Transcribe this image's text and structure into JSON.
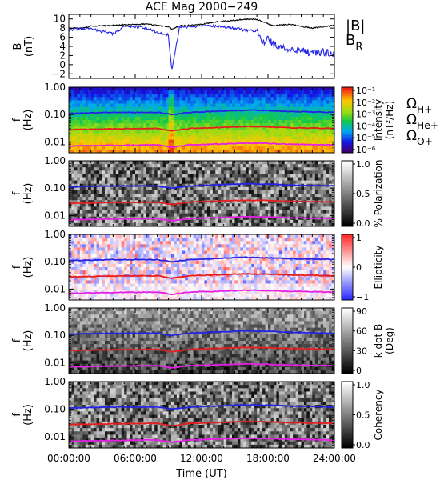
{
  "title": "ACE Mag 2000−249",
  "x_axis": {
    "label": "Time (UT)",
    "range_hours": [
      0,
      24
    ],
    "ticks": [
      {
        "h": 0,
        "label": "00:00:00"
      },
      {
        "h": 6,
        "label": "06:00:00"
      },
      {
        "h": 12,
        "label": "12:00:00"
      },
      {
        "h": 18,
        "label": "18:00:00"
      },
      {
        "h": 24,
        "label": "24:00:00"
      }
    ]
  },
  "panels": [
    {
      "id": "b",
      "ylabel": "B",
      "ylabel2": "(nT)",
      "ylim": [
        -3,
        11
      ],
      "yticks": [
        "10",
        "8",
        "6",
        "4",
        "2",
        "0",
        "−2"
      ],
      "ytick_values": [
        10,
        8,
        6,
        4,
        2,
        0,
        -2
      ],
      "legend": [
        {
          "text": "|B|",
          "color": "#000000"
        },
        {
          "text": "B",
          "sub": "R",
          "color": "#2323e6"
        }
      ]
    },
    {
      "id": "intensity",
      "ylabel": "f",
      "ylabel2": "(Hz)",
      "yticks": [
        "1.00",
        "0.10",
        "0.01"
      ],
      "colorbar_label": "Intensity",
      "colorbar_label2": "(nT²/Hz)",
      "colorbar_ticks": [
        "10⁻¹",
        "10⁻²",
        "10⁻³",
        "10⁻⁴",
        "10⁻⁵",
        "10⁻⁶"
      ],
      "legend": [
        {
          "text": "Ω",
          "sub": "H+",
          "color": "#2323e6"
        },
        {
          "text": "Ω",
          "sub": "He+",
          "color": "#e61e1e"
        },
        {
          "text": "Ω",
          "sub": "O+",
          "color": "#e61ee6"
        }
      ]
    },
    {
      "id": "polarization",
      "ylabel": "f",
      "ylabel2": "(Hz)",
      "yticks": [
        "1.00",
        "0.10",
        "0.01"
      ],
      "colorbar_label": "% Polarization",
      "colorbar_ticks": [
        "1.0",
        "0.5",
        "0.0"
      ]
    },
    {
      "id": "ellipticity",
      "ylabel": "f",
      "ylabel2": "(Hz)",
      "yticks": [
        "1.00",
        "0.10",
        "0.01"
      ],
      "colorbar_label": "Ellipticity",
      "colorbar_ticks": [
        "1",
        "0",
        "−1"
      ]
    },
    {
      "id": "kdotb",
      "ylabel": "f",
      "ylabel2": "(Hz)",
      "yticks": [
        "1.00",
        "0.10",
        "0.01"
      ],
      "colorbar_label": "k dot B",
      "colorbar_label2": "(Deg)",
      "colorbar_ticks": [
        "90",
        "60",
        "30",
        "0"
      ]
    },
    {
      "id": "coherency",
      "ylabel": "f",
      "ylabel2": "(Hz)",
      "yticks": [
        "1.00",
        "0.10",
        "0.01"
      ],
      "colorbar_label": "Coherency",
      "colorbar_ticks": [
        "1.0",
        "0.5",
        "0.0"
      ]
    }
  ],
  "chart_data": [
    {
      "type": "line",
      "panel": "b",
      "title": "ACE Mag 2000−249",
      "xlabel": "Time (UT)",
      "ylabel": "B (nT)",
      "xlim": [
        0,
        24
      ],
      "ylim": [
        -3,
        11
      ],
      "series": [
        {
          "name": "|B|",
          "color": "#000000",
          "x": [
            0,
            1,
            2,
            3,
            4,
            5,
            6,
            7,
            8,
            9,
            9.3,
            10,
            11,
            12,
            13,
            14,
            15,
            16,
            17,
            17.5,
            18,
            18.5,
            19,
            20,
            21,
            22,
            23,
            24
          ],
          "y": [
            8.0,
            8.0,
            8.4,
            8.5,
            8.6,
            8.7,
            8.8,
            8.9,
            8.6,
            8.3,
            7.8,
            8.5,
            8.6,
            8.8,
            9.3,
            9.5,
            9.7,
            10.0,
            9.9,
            9.4,
            9.0,
            8.5,
            8.7,
            8.8,
            8.4,
            8.0,
            8.3,
            8.6
          ]
        },
        {
          "name": "B_R",
          "color": "#2323e6",
          "x": [
            0,
            1,
            2,
            3,
            4,
            5,
            6,
            7,
            8,
            9,
            9.3,
            10,
            11,
            12,
            13,
            14,
            15,
            16,
            17,
            17.5,
            18,
            18.5,
            19,
            20,
            21,
            22,
            23,
            24
          ],
          "y": [
            7.6,
            7.8,
            8.0,
            7.2,
            6.8,
            8.2,
            8.3,
            8.0,
            7.0,
            6.5,
            -1.5,
            8.2,
            8.3,
            8.5,
            8.4,
            8.4,
            8.0,
            7.5,
            7.5,
            5.0,
            5.5,
            4.5,
            4.2,
            3.5,
            3.0,
            2.5,
            2.8,
            2.2
          ]
        }
      ]
    },
    {
      "type": "heatmap",
      "panel": "intensity",
      "xlabel": "Time (UT)",
      "ylabel": "f (Hz)",
      "yscale": "log",
      "xlim": [
        0,
        24
      ],
      "ylim": [
        0.004,
        1.0
      ],
      "colorbar": "Intensity (nT²/Hz)",
      "clim": [
        1e-06,
        0.1
      ]
    },
    {
      "type": "heatmap",
      "panel": "polarization",
      "xlabel": "Time (UT)",
      "ylabel": "f (Hz)",
      "yscale": "log",
      "xlim": [
        0,
        24
      ],
      "ylim": [
        0.004,
        1.0
      ],
      "colorbar": "% Polarization",
      "clim": [
        0.0,
        1.0
      ]
    },
    {
      "type": "heatmap",
      "panel": "ellipticity",
      "xlabel": "Time (UT)",
      "ylabel": "f (Hz)",
      "yscale": "log",
      "xlim": [
        0,
        24
      ],
      "ylim": [
        0.004,
        1.0
      ],
      "colorbar": "Ellipticity",
      "clim": [
        -1,
        1
      ]
    },
    {
      "type": "heatmap",
      "panel": "kdotb",
      "xlabel": "Time (UT)",
      "ylabel": "f (Hz)",
      "yscale": "log",
      "xlim": [
        0,
        24
      ],
      "ylim": [
        0.004,
        1.0
      ],
      "colorbar": "k dot B (Deg)",
      "clim": [
        0,
        90
      ]
    },
    {
      "type": "heatmap",
      "panel": "coherency",
      "xlabel": "Time (UT)",
      "ylabel": "f (Hz)",
      "yscale": "log",
      "xlim": [
        0,
        24
      ],
      "ylim": [
        0.004,
        1.0
      ],
      "colorbar": "Coherency",
      "clim": [
        0.0,
        1.0
      ]
    },
    {
      "type": "line",
      "panel": "gyrofrequency-overlays",
      "xlabel": "Time (UT)",
      "ylabel": "f (Hz)",
      "series": [
        {
          "name": "ΩH+",
          "color": "#2323e6",
          "x": [
            0,
            4,
            8,
            9.3,
            11,
            14,
            16,
            18,
            20,
            24
          ],
          "y": [
            0.11,
            0.12,
            0.12,
            0.1,
            0.12,
            0.135,
            0.145,
            0.14,
            0.13,
            0.12
          ]
        },
        {
          "name": "ΩHe+",
          "color": "#e61e1e",
          "x": [
            0,
            4,
            8,
            9.3,
            11,
            14,
            16,
            18,
            20,
            24
          ],
          "y": [
            0.028,
            0.03,
            0.031,
            0.025,
            0.031,
            0.034,
            0.036,
            0.035,
            0.033,
            0.031
          ]
        },
        {
          "name": "ΩO+",
          "color": "#e61ee6",
          "x": [
            0,
            4,
            8,
            9.3,
            11,
            14,
            16,
            18,
            20,
            24
          ],
          "y": [
            0.007,
            0.0075,
            0.0078,
            0.0064,
            0.0078,
            0.0085,
            0.009,
            0.0088,
            0.0083,
            0.0077
          ]
        }
      ]
    }
  ]
}
